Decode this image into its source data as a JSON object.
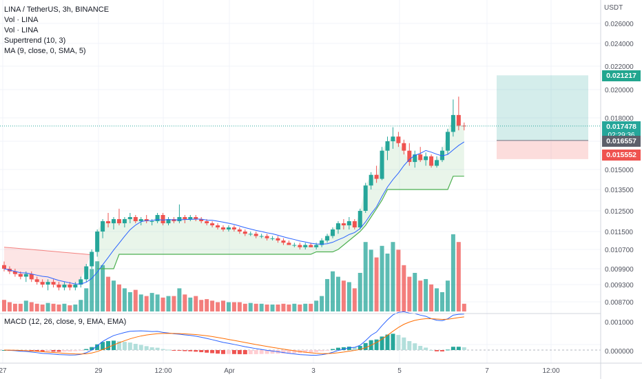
{
  "legend": {
    "symbol": "LINA / TetherUS, 3h, BINANCE",
    "vol1": "Vol · LINA",
    "vol2": "Vol · LINA",
    "supertrend": "Supertrend (10, 3)",
    "ma": "MA (9, close, 0, SMA, 5)"
  },
  "macd_legend": "MACD (12, 26, close, 9, EMA, EMA)",
  "price_axis": {
    "currency": "USDT",
    "ticks": [
      "0.026000",
      "0.024000",
      "0.022000",
      "0.020000",
      "0.018000",
      "0.016500",
      "0.015000",
      "0.013500",
      "0.012500",
      "0.011500",
      "0.010700",
      "0.009900",
      "0.009300",
      "0.008700"
    ]
  },
  "macd_axis": {
    "ticks": [
      "0.001000",
      "0.000000"
    ]
  },
  "time_axis": {
    "ticks": [
      "27",
      "29",
      "12:00",
      "Apr",
      "3",
      "5",
      "7",
      "12:00"
    ]
  },
  "tags": {
    "target": "0.021217",
    "last_price": "0.017478",
    "countdown": "02:29:36",
    "entry": "0.016557",
    "stop": "0.015552"
  },
  "colors": {
    "up": "#26a69a",
    "down": "#ef5350",
    "ma": "#2962ff",
    "supertrend": "#4caf50",
    "macd_signal": "#ff6d00"
  },
  "chart_data": {
    "type": "candlestick",
    "title": "LINA / TetherUS, 3h, BINANCE",
    "y_unit": "USDT",
    "candles_ohlc": [
      [
        0.01005,
        0.0102,
        0.0098,
        0.0099
      ],
      [
        0.0099,
        0.01,
        0.0097,
        0.0098
      ],
      [
        0.0098,
        0.0099,
        0.0096,
        0.0097
      ],
      [
        0.0097,
        0.0098,
        0.0095,
        0.0096
      ],
      [
        0.0096,
        0.0098,
        0.0094,
        0.0097
      ],
      [
        0.0097,
        0.0098,
        0.0094,
        0.0095
      ],
      [
        0.0095,
        0.0096,
        0.0093,
        0.0094
      ],
      [
        0.0094,
        0.0095,
        0.0092,
        0.0093
      ],
      [
        0.0093,
        0.0095,
        0.0091,
        0.0094
      ],
      [
        0.0094,
        0.0095,
        0.0092,
        0.0093
      ],
      [
        0.0093,
        0.0094,
        0.0091,
        0.0092
      ],
      [
        0.0092,
        0.0094,
        0.0091,
        0.0093
      ],
      [
        0.0093,
        0.0094,
        0.0091,
        0.0092
      ],
      [
        0.0092,
        0.0094,
        0.0091,
        0.0093
      ],
      [
        0.0093,
        0.0096,
        0.0092,
        0.0095
      ],
      [
        0.0095,
        0.0101,
        0.0094,
        0.01
      ],
      [
        0.01,
        0.0107,
        0.0099,
        0.0106
      ],
      [
        0.0106,
        0.0116,
        0.0104,
        0.0115
      ],
      [
        0.0115,
        0.0121,
        0.0112,
        0.012
      ],
      [
        0.012,
        0.0124,
        0.0117,
        0.0119
      ],
      [
        0.0119,
        0.0122,
        0.0116,
        0.0121
      ],
      [
        0.0121,
        0.0126,
        0.0118,
        0.0119
      ],
      [
        0.0119,
        0.0122,
        0.0117,
        0.0121
      ],
      [
        0.0121,
        0.0124,
        0.0119,
        0.0122
      ],
      [
        0.0122,
        0.0123,
        0.0119,
        0.012
      ],
      [
        0.012,
        0.0122,
        0.0118,
        0.0121
      ],
      [
        0.0121,
        0.0123,
        0.0119,
        0.012
      ],
      [
        0.012,
        0.0121,
        0.0118,
        0.012
      ],
      [
        0.012,
        0.0124,
        0.0119,
        0.0123
      ],
      [
        0.0123,
        0.0124,
        0.0118,
        0.0119
      ],
      [
        0.0119,
        0.0122,
        0.0118,
        0.0121
      ],
      [
        0.0121,
        0.0122,
        0.0119,
        0.012
      ],
      [
        0.012,
        0.0128,
        0.0119,
        0.0122
      ],
      [
        0.0122,
        0.0123,
        0.0119,
        0.0121
      ],
      [
        0.0121,
        0.0123,
        0.012,
        0.0122
      ],
      [
        0.0122,
        0.0123,
        0.012,
        0.0121
      ],
      [
        0.0121,
        0.0122,
        0.0119,
        0.012
      ],
      [
        0.012,
        0.0121,
        0.0118,
        0.0119
      ],
      [
        0.0119,
        0.012,
        0.0117,
        0.0118
      ],
      [
        0.0118,
        0.0119,
        0.0116,
        0.0117
      ],
      [
        0.0117,
        0.0118,
        0.0115,
        0.0116
      ],
      [
        0.0116,
        0.0118,
        0.0115,
        0.0117
      ],
      [
        0.0117,
        0.0118,
        0.0115,
        0.0116
      ],
      [
        0.0116,
        0.0117,
        0.0114,
        0.0115
      ],
      [
        0.0115,
        0.0116,
        0.0113,
        0.0114
      ],
      [
        0.0114,
        0.0115,
        0.0113,
        0.0114
      ],
      [
        0.0114,
        0.0115,
        0.0112,
        0.0113
      ],
      [
        0.0113,
        0.0114,
        0.0112,
        0.0113
      ],
      [
        0.0113,
        0.0114,
        0.0111,
        0.0112
      ],
      [
        0.0112,
        0.0113,
        0.0111,
        0.0112
      ],
      [
        0.0112,
        0.0113,
        0.011,
        0.0111
      ],
      [
        0.0111,
        0.0112,
        0.0109,
        0.011
      ],
      [
        0.011,
        0.0111,
        0.0109,
        0.0109
      ],
      [
        0.0109,
        0.011,
        0.0108,
        0.0109
      ],
      [
        0.0109,
        0.011,
        0.0107,
        0.0108
      ],
      [
        0.0108,
        0.011,
        0.0107,
        0.0109
      ],
      [
        0.0109,
        0.011,
        0.0108,
        0.0108
      ],
      [
        0.0108,
        0.011,
        0.0107,
        0.0109
      ],
      [
        0.0109,
        0.0112,
        0.0108,
        0.0111
      ],
      [
        0.0111,
        0.0114,
        0.011,
        0.0113
      ],
      [
        0.0113,
        0.0117,
        0.0112,
        0.0116
      ],
      [
        0.0116,
        0.012,
        0.0114,
        0.0119
      ],
      [
        0.0119,
        0.0121,
        0.0116,
        0.0118
      ],
      [
        0.0118,
        0.0122,
        0.0116,
        0.012
      ],
      [
        0.012,
        0.0121,
        0.0116,
        0.0117
      ],
      [
        0.0117,
        0.0126,
        0.0116,
        0.0125
      ],
      [
        0.0125,
        0.014,
        0.0124,
        0.0138
      ],
      [
        0.0138,
        0.0148,
        0.0135,
        0.0146
      ],
      [
        0.0146,
        0.0152,
        0.014,
        0.0143
      ],
      [
        0.0143,
        0.0162,
        0.0142,
        0.016
      ],
      [
        0.016,
        0.0168,
        0.0155,
        0.0165
      ],
      [
        0.0165,
        0.0174,
        0.0161,
        0.0168
      ],
      [
        0.0168,
        0.0171,
        0.0162,
        0.0164
      ],
      [
        0.0164,
        0.0166,
        0.0158,
        0.016
      ],
      [
        0.016,
        0.0164,
        0.0152,
        0.0154
      ],
      [
        0.0154,
        0.016,
        0.0151,
        0.0158
      ],
      [
        0.0158,
        0.0162,
        0.0154,
        0.0155
      ],
      [
        0.0155,
        0.0159,
        0.0152,
        0.0157
      ],
      [
        0.0157,
        0.0158,
        0.0151,
        0.0152
      ],
      [
        0.0152,
        0.0157,
        0.0151,
        0.0155
      ],
      [
        0.0155,
        0.0162,
        0.0154,
        0.016
      ],
      [
        0.016,
        0.0173,
        0.0158,
        0.0171
      ],
      [
        0.0171,
        0.0193,
        0.0168,
        0.0182
      ],
      [
        0.0182,
        0.0195,
        0.0172,
        0.0175
      ],
      [
        0.0175,
        0.0177,
        0.0172,
        0.01748
      ]
    ],
    "volume": [
      0.15,
      0.12,
      0.1,
      0.1,
      0.14,
      0.12,
      0.1,
      0.09,
      0.11,
      0.1,
      0.09,
      0.1,
      0.08,
      0.09,
      0.15,
      0.3,
      0.55,
      0.65,
      0.6,
      0.45,
      0.4,
      0.35,
      0.3,
      0.25,
      0.28,
      0.22,
      0.2,
      0.24,
      0.22,
      0.18,
      0.2,
      0.2,
      0.3,
      0.22,
      0.18,
      0.2,
      0.15,
      0.16,
      0.14,
      0.12,
      0.14,
      0.12,
      0.12,
      0.12,
      0.1,
      0.11,
      0.1,
      0.1,
      0.09,
      0.09,
      0.09,
      0.1,
      0.09,
      0.1,
      0.09,
      0.1,
      0.1,
      0.14,
      0.2,
      0.42,
      0.52,
      0.45,
      0.4,
      0.38,
      0.3,
      0.5,
      0.9,
      0.8,
      0.7,
      0.85,
      0.75,
      0.9,
      0.8,
      0.6,
      0.45,
      0.5,
      0.4,
      0.42,
      0.35,
      0.3,
      0.25,
      0.4,
      1.0,
      0.9,
      0.1
    ],
    "ma_line": "SMA 9 of close",
    "supertrend_levels": [
      0.0107,
      0.0099,
      0.0105,
      0.0135,
      0.0145
    ],
    "macd": {
      "hist_range": [
        -5e-05,
        0.0006
      ],
      "line_range": [
        0.0,
        0.0012
      ]
    },
    "position": {
      "target": 0.021217,
      "entry": 0.016557,
      "stop": 0.015552
    },
    "y_range": [
      0.0083,
      0.0275
    ]
  }
}
